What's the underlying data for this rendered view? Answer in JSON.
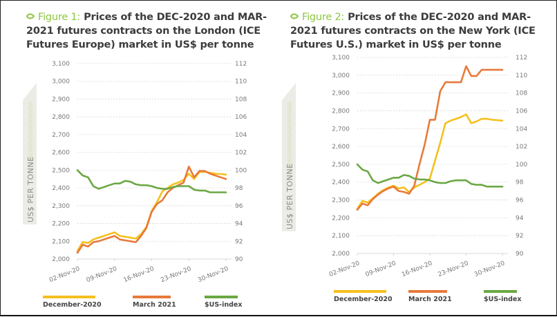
{
  "colors": {
    "december": "#f5c01e",
    "march": "#e8793a",
    "usindex": "#6aa843",
    "figure_label": "#8cc63f",
    "grid": "#d8d8d8"
  },
  "legend": {
    "december": "December-2020",
    "march": "March 2021",
    "usindex": "$US-index"
  },
  "y_axis_title": "US$ PER TONNE",
  "chart_data": [
    {
      "type": "line",
      "figure_label": "Figure 1:",
      "title": "Prices of the DEC-2020 and MAR-2021 futures contracts on the London (ICE Futures Europe) market in US$ per tonne",
      "xlabel": "",
      "ylabel": "US$ PER TONNE",
      "ylim": [
        2000,
        3100
      ],
      "y2lim": [
        90,
        112
      ],
      "yticks": [
        "2,000",
        "2,100",
        "2,200",
        "2,300",
        "2,400",
        "2,500",
        "2,600",
        "2,700",
        "2,800",
        "2,900",
        "3,000",
        "3,100"
      ],
      "y2ticks": [
        "90",
        "92",
        "94",
        "96",
        "98",
        "100",
        "102",
        "104",
        "106",
        "108",
        "110",
        "112"
      ],
      "xticks": [
        "02-Nov-20",
        "09-Nov-20",
        "16-Nov-20",
        "23-Nov-20",
        "30-Nov-20"
      ],
      "grid": true,
      "legend_position": "bottom",
      "x": [
        0,
        1,
        2,
        3,
        4,
        5,
        6,
        7,
        8,
        9,
        10,
        11,
        12,
        13,
        14,
        15,
        16,
        17,
        18,
        19,
        20,
        21,
        22,
        23,
        24,
        25,
        26,
        27,
        28
      ],
      "series": [
        {
          "name": "December-2020",
          "axis": "left",
          "values": [
            2045,
            2095,
            2090,
            2110,
            2120,
            2130,
            2140,
            2150,
            2130,
            2125,
            2120,
            2115,
            2140,
            2180,
            2270,
            2320,
            2380,
            2400,
            2420,
            2430,
            2445,
            2480,
            2450,
            2490,
            2490,
            2485,
            2480,
            2478,
            2475
          ]
        },
        {
          "name": "March 2021",
          "axis": "left",
          "values": [
            2035,
            2080,
            2070,
            2095,
            2100,
            2110,
            2120,
            2130,
            2110,
            2105,
            2100,
            2095,
            2130,
            2175,
            2265,
            2310,
            2330,
            2375,
            2400,
            2415,
            2430,
            2520,
            2460,
            2495,
            2495,
            2480,
            2470,
            2460,
            2450
          ]
        },
        {
          "name": "$US-index",
          "axis": "right",
          "values": [
            100.0,
            99.4,
            99.2,
            98.2,
            97.9,
            98.1,
            98.3,
            98.5,
            98.5,
            98.8,
            98.7,
            98.4,
            98.3,
            98.3,
            98.2,
            98.0,
            97.9,
            97.9,
            98.1,
            98.2,
            98.2,
            98.2,
            97.8,
            97.7,
            97.7,
            97.5,
            97.5,
            97.5,
            97.5
          ]
        }
      ]
    },
    {
      "type": "line",
      "figure_label": "Figure 2:",
      "title": "Prices of the DEC-2020 and MAR-2021 futures contracts on the New York (ICE Futures U.S.) market in US$ per tonne",
      "xlabel": "",
      "ylabel": "US$ PER TONNE",
      "ylim": [
        2000,
        3100
      ],
      "y2lim": [
        90,
        112
      ],
      "yticks": [
        "2,000",
        "2,100",
        "2,200",
        "2,300",
        "2,400",
        "2,500",
        "2,600",
        "2,700",
        "2,800",
        "2,900",
        "3,000",
        "3,100"
      ],
      "y2ticks": [
        "90",
        "92",
        "94",
        "96",
        "98",
        "100",
        "102",
        "104",
        "106",
        "108",
        "110",
        "112"
      ],
      "xticks": [
        "02-Nov-20",
        "09-Nov-20",
        "16-Nov-20",
        "23-Nov-20",
        "30-Nov-20"
      ],
      "grid": true,
      "legend_position": "bottom",
      "x": [
        0,
        1,
        2,
        3,
        4,
        5,
        6,
        7,
        8,
        9,
        10,
        11,
        12,
        13,
        14,
        15,
        16,
        17,
        18,
        19,
        20,
        21,
        22,
        23,
        24,
        25,
        26,
        27,
        28
      ],
      "series": [
        {
          "name": "December-2020",
          "axis": "left",
          "values": [
            2250,
            2295,
            2285,
            2310,
            2335,
            2355,
            2370,
            2380,
            2365,
            2370,
            2345,
            2370,
            2385,
            2400,
            2420,
            2520,
            2620,
            2730,
            2745,
            2755,
            2765,
            2780,
            2730,
            2740,
            2755,
            2755,
            2750,
            2748,
            2745
          ]
        },
        {
          "name": "March 2021",
          "axis": "left",
          "values": [
            2245,
            2280,
            2270,
            2305,
            2330,
            2350,
            2365,
            2375,
            2350,
            2345,
            2335,
            2380,
            2500,
            2610,
            2750,
            2750,
            2910,
            2960,
            2960,
            2960,
            2960,
            3050,
            2995,
            2995,
            3030,
            3030,
            3030,
            3030,
            3030
          ]
        },
        {
          "name": "$US-index",
          "axis": "right",
          "values": [
            100.0,
            99.4,
            99.2,
            98.2,
            97.9,
            98.1,
            98.3,
            98.5,
            98.5,
            98.8,
            98.7,
            98.4,
            98.3,
            98.3,
            98.2,
            98.0,
            97.9,
            97.9,
            98.1,
            98.2,
            98.2,
            98.2,
            97.8,
            97.7,
            97.7,
            97.5,
            97.5,
            97.5,
            97.5
          ]
        }
      ]
    }
  ]
}
